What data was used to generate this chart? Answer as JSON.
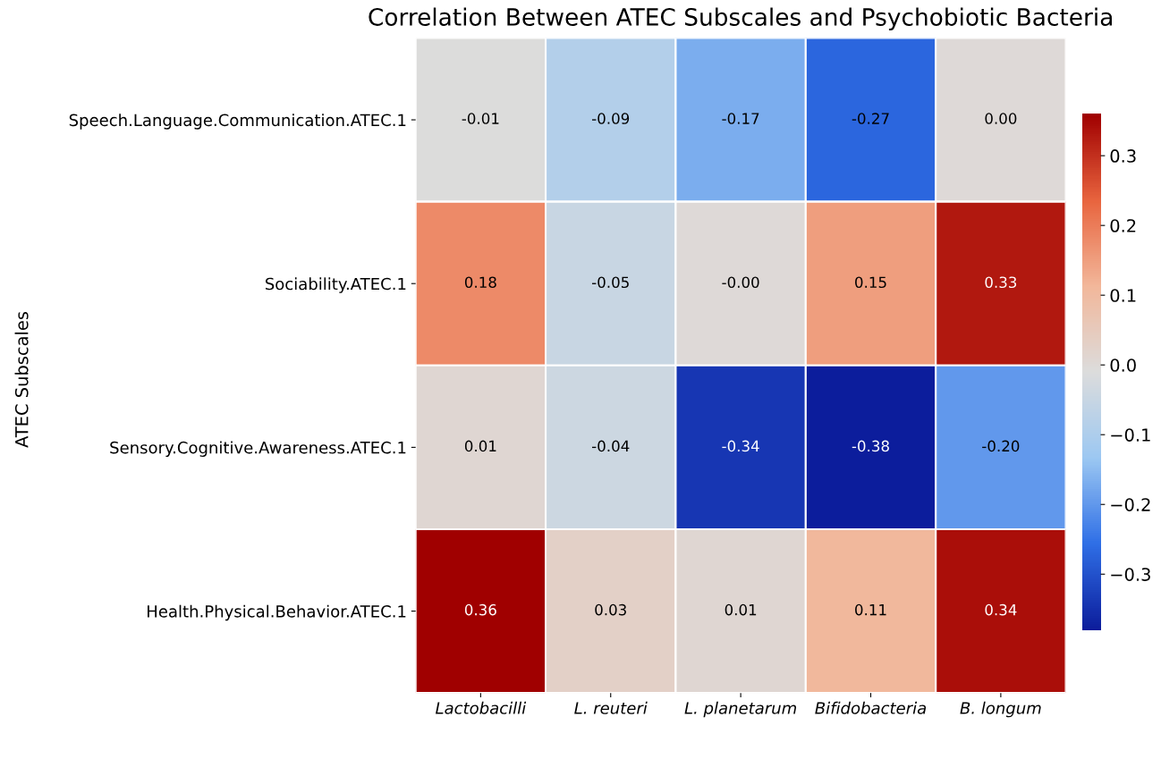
{
  "chart_data": {
    "type": "heatmap",
    "title": "Correlation Between ATEC Subscales and Psychobiotic Bacteria",
    "ylabel": "ATEC Subscales",
    "categories": [
      "Lactobacilli",
      "L. reuteri",
      "L. planetarum",
      "Bifidobacteria",
      "B. longum"
    ],
    "y_categories": [
      "Speech.Language.Communication.ATEC.1",
      "Sociability.ATEC.1",
      "Sensory.Cognitive.Awareness.ATEC.1",
      "Health.Physical.Behavior.ATEC.1"
    ],
    "cells": [
      [
        -0.01,
        -0.09,
        -0.17,
        -0.27,
        0.0
      ],
      [
        0.18,
        -0.05,
        -0.0,
        0.15,
        0.33
      ],
      [
        0.01,
        -0.04,
        -0.34,
        -0.38,
        -0.2
      ],
      [
        0.36,
        0.03,
        0.01,
        0.11,
        0.34
      ]
    ],
    "cell_labels": [
      [
        "-0.01",
        "-0.09",
        "-0.17",
        "-0.27",
        "0.00"
      ],
      [
        "0.18",
        "-0.05",
        "-0.00",
        "0.15",
        "0.33"
      ],
      [
        "0.01",
        "-0.04",
        "-0.34",
        "-0.38",
        "-0.20"
      ],
      [
        "0.36",
        "0.03",
        "0.01",
        "0.11",
        "0.34"
      ]
    ],
    "clim": [
      -0.38,
      0.36
    ],
    "cticks": [
      {
        "value": -0.3,
        "label": "−0.3"
      },
      {
        "value": -0.2,
        "label": "−0.2"
      },
      {
        "value": -0.1,
        "label": "−0.1"
      },
      {
        "value": 0.0,
        "label": "0.0"
      },
      0.1,
      0.2,
      0.3
    ]
  }
}
